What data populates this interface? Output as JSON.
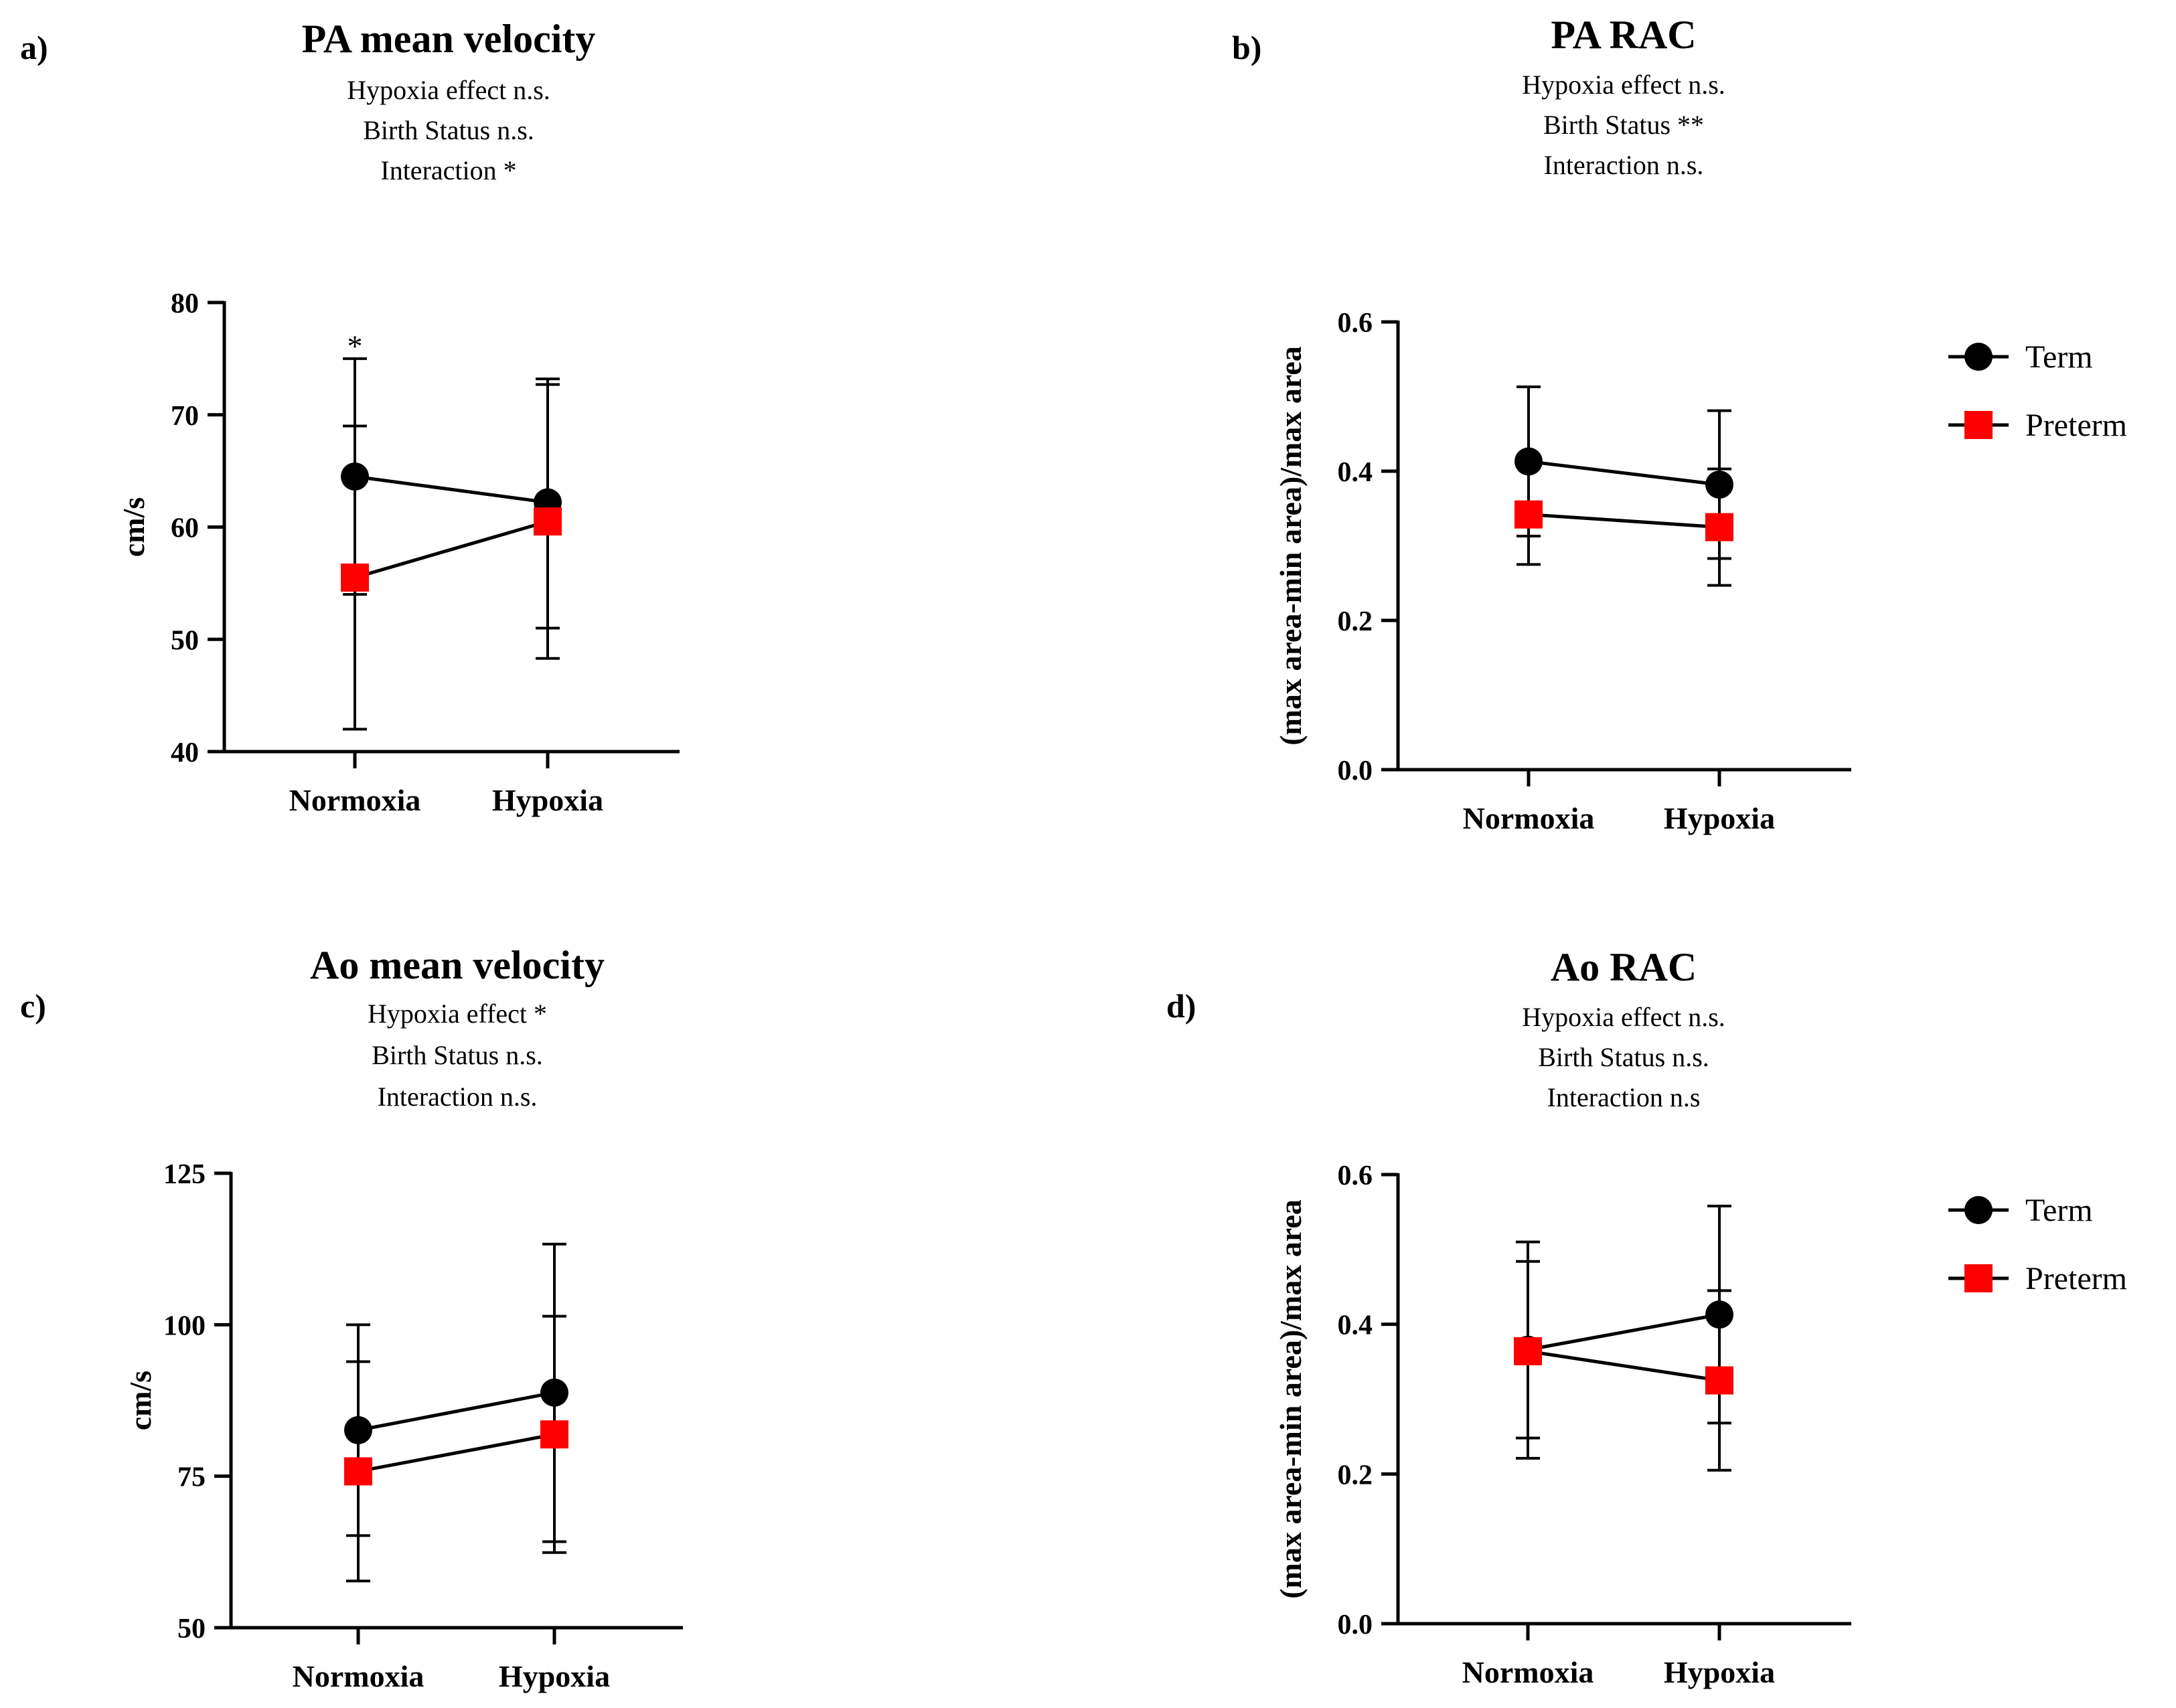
{
  "chart_data": [
    {
      "id": "a",
      "type": "line",
      "panel_label": "a)",
      "title": "PA mean velocity",
      "subtitle_lines": [
        "Hypoxia effect n.s.",
        "Birth Status n.s.",
        "Interaction *"
      ],
      "xlabel": "",
      "ylabel": "cm/s",
      "categories": [
        "Normoxia",
        "Hypoxia"
      ],
      "ylim": [
        40,
        80
      ],
      "yticks": [
        40,
        50,
        60,
        70,
        80
      ],
      "tick_labels": [
        "40",
        "50",
        "60",
        "70",
        "80"
      ],
      "series": [
        {
          "name": "Term",
          "marker": "circle",
          "color": "#000000",
          "values": [
            64.5,
            62.2
          ],
          "err_low": [
            54.0,
            51.0
          ],
          "err_high": [
            75.0,
            73.2
          ]
        },
        {
          "name": "Preterm",
          "marker": "square",
          "color": "#ff0000",
          "values": [
            55.5,
            60.5
          ],
          "err_low": [
            42.0,
            48.3
          ],
          "err_high": [
            69.0,
            72.7
          ]
        }
      ],
      "annotations": [
        {
          "text": "*",
          "category": "Normoxia",
          "y": 77
        }
      ],
      "legend": null
    },
    {
      "id": "b",
      "type": "line",
      "panel_label": "b)",
      "title": "PA RAC",
      "subtitle_lines": [
        "Hypoxia effect n.s.",
        "Birth Status **",
        "Interaction n.s."
      ],
      "xlabel": "",
      "ylabel": "(max area-min area)/max area",
      "categories": [
        "Normoxia",
        "Hypoxia"
      ],
      "ylim": [
        0,
        0.6
      ],
      "yticks": [
        0,
        0.2,
        0.4,
        0.6
      ],
      "tick_labels": [
        "0.0",
        "0.2",
        "0.4",
        "0.6"
      ],
      "series": [
        {
          "name": "Term",
          "marker": "circle",
          "color": "#000000",
          "values": [
            0.413,
            0.382
          ],
          "err_low": [
            0.313,
            0.283
          ],
          "err_high": [
            0.513,
            0.481
          ]
        },
        {
          "name": "Preterm",
          "marker": "square",
          "color": "#ff0000",
          "values": [
            0.342,
            0.325
          ],
          "err_low": [
            0.275,
            0.247
          ],
          "err_high": [
            0.409,
            0.403
          ]
        }
      ],
      "annotations": [],
      "legend": {
        "position": "right",
        "entries": [
          "Term",
          "Preterm"
        ]
      }
    },
    {
      "id": "c",
      "type": "line",
      "panel_label": "c)",
      "title": "Ao mean velocity",
      "subtitle_lines": [
        "Hypoxia effect *",
        "Birth Status n.s.",
        "Interaction n.s."
      ],
      "xlabel": "",
      "ylabel": "cm/s",
      "categories": [
        "Normoxia",
        "Hypoxia"
      ],
      "ylim": [
        50,
        125
      ],
      "yticks": [
        50,
        75,
        100,
        125
      ],
      "tick_labels": [
        "50",
        "75",
        "100",
        "125"
      ],
      "series": [
        {
          "name": "Term",
          "marker": "circle",
          "color": "#000000",
          "values": [
            82.6,
            88.8
          ],
          "err_low": [
            65.2,
            64.2
          ],
          "err_high": [
            100.0,
            113.3
          ]
        },
        {
          "name": "Preterm",
          "marker": "square",
          "color": "#ff0000",
          "values": [
            75.8,
            81.9
          ],
          "err_low": [
            57.7,
            62.4
          ],
          "err_high": [
            93.9,
            101.4
          ]
        }
      ],
      "annotations": [],
      "legend": null
    },
    {
      "id": "d",
      "type": "line",
      "panel_label": "d)",
      "title": "Ao RAC",
      "subtitle_lines": [
        "Hypoxia effect n.s.",
        "Birth Status n.s.",
        "Interaction n.s"
      ],
      "xlabel": "",
      "ylabel": "(max area-min area)/max area",
      "categories": [
        "Normoxia",
        "Hypoxia"
      ],
      "ylim": [
        0,
        0.6
      ],
      "yticks": [
        0,
        0.2,
        0.4,
        0.6
      ],
      "tick_labels": [
        "0.0",
        "0.2",
        "0.4",
        "0.6"
      ],
      "series": [
        {
          "name": "Term",
          "marker": "circle",
          "color": "#000000",
          "values": [
            0.366,
            0.413
          ],
          "err_low": [
            0.221,
            0.268
          ],
          "err_high": [
            0.51,
            0.558
          ]
        },
        {
          "name": "Preterm",
          "marker": "square",
          "color": "#ff0000",
          "values": [
            0.364,
            0.325
          ],
          "err_low": [
            0.248,
            0.205
          ],
          "err_high": [
            0.484,
            0.445
          ]
        }
      ],
      "annotations": [],
      "legend": {
        "position": "right",
        "entries": [
          "Term",
          "Preterm"
        ]
      }
    }
  ]
}
